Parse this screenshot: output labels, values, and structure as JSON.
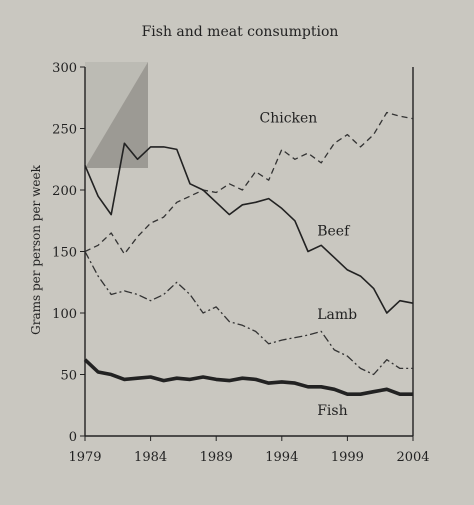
{
  "chart_data": {
    "type": "line",
    "title": "Fish and meat consumption",
    "xlabel": "",
    "ylabel": "Grams per person per week",
    "xlim": [
      1979,
      2004
    ],
    "ylim": [
      0,
      300
    ],
    "x_ticks": [
      1979,
      1984,
      1989,
      1994,
      1999,
      2004
    ],
    "y_ticks": [
      0,
      50,
      100,
      150,
      200,
      250,
      300
    ],
    "grid": false,
    "x": [
      1979,
      1980,
      1981,
      1982,
      1983,
      1984,
      1985,
      1986,
      1987,
      1988,
      1989,
      1990,
      1991,
      1992,
      1993,
      1994,
      1995,
      1996,
      1997,
      1998,
      1999,
      2000,
      2001,
      2002,
      2003,
      2004
    ],
    "series": [
      {
        "name": "Chicken",
        "style": "dashed",
        "color": "#333333",
        "values": [
          150,
          155,
          165,
          148,
          162,
          173,
          178,
          190,
          195,
          200,
          198,
          205,
          200,
          215,
          208,
          233,
          225,
          230,
          222,
          238,
          245,
          235,
          245,
          263,
          260,
          258
        ]
      },
      {
        "name": "Beef",
        "style": "solid",
        "color": "#222222",
        "values": [
          220,
          195,
          180,
          238,
          225,
          235,
          235,
          233,
          205,
          200,
          190,
          180,
          188,
          190,
          193,
          185,
          175,
          150,
          155,
          145,
          135,
          130,
          120,
          100,
          110,
          108
        ]
      },
      {
        "name": "Lamb",
        "style": "dashdot",
        "color": "#333333",
        "values": [
          150,
          130,
          115,
          118,
          115,
          110,
          115,
          125,
          115,
          100,
          105,
          93,
          90,
          85,
          75,
          78,
          80,
          82,
          85,
          70,
          65,
          55,
          50,
          62,
          55,
          55
        ]
      },
      {
        "name": "Fish",
        "style": "thick",
        "color": "#222222",
        "values": [
          62,
          52,
          50,
          46,
          47,
          48,
          45,
          47,
          46,
          48,
          46,
          45,
          47,
          46,
          43,
          44,
          43,
          40,
          40,
          38,
          34,
          34,
          36,
          38,
          34,
          34
        ]
      }
    ],
    "label_positions": {
      "Chicken": [
        1992.3,
        255
      ],
      "Beef": [
        1996.7,
        163
      ],
      "Lamb": [
        1996.7,
        95
      ],
      "Fish": [
        1996.7,
        17
      ]
    }
  }
}
